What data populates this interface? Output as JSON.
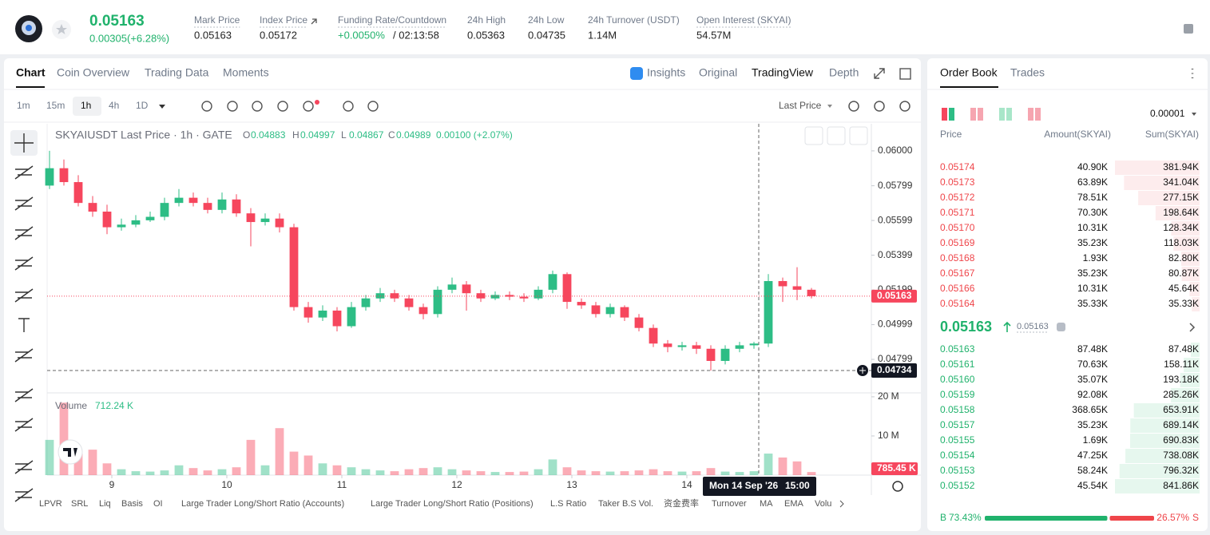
{
  "header": {
    "price": "0.05163",
    "change": "0.00305(+6.28%)",
    "stats": [
      {
        "label": "Mark Price",
        "value": "0.05163"
      },
      {
        "label": "Index Price",
        "value": "0.05172"
      },
      {
        "label": "Funding Rate/Countdown",
        "value": "+0.0050%",
        "extra": "/ 02:13:58"
      },
      {
        "label": "24h High",
        "value": "0.05363"
      },
      {
        "label": "24h Low",
        "value": "0.04735"
      },
      {
        "label": "24h Turnover (USDT)",
        "value": "1.14M"
      },
      {
        "label": "Open Interest (SKYAI)",
        "value": "54.57M"
      }
    ]
  },
  "chart_tabs": [
    "Chart",
    "Coin Overview",
    "Trading Data",
    "Moments"
  ],
  "chart_views": [
    "Insights",
    "Original",
    "TradingView",
    "Depth"
  ],
  "intervals": [
    "1m",
    "15m",
    "1h",
    "4h",
    "1D"
  ],
  "price_source": "Last Price",
  "chart_data": {
    "type": "candlestick",
    "symbol_title": "SKYAIUSDT Last Price · 1h · GATE",
    "ohlc_legend": [
      {
        "label": "O",
        "value": "0.04883"
      },
      {
        "label": "H",
        "value": "0.04997"
      },
      {
        "label": "L",
        "value": "0.04867"
      },
      {
        "label": "C",
        "value": "0.04989"
      }
    ],
    "ohlc_change": "0.00100 (+2.07%)",
    "up_color": "#2dbd85",
    "down_color": "#f6465d",
    "x": [
      0,
      3,
      6,
      9,
      12,
      15,
      18,
      21,
      24,
      27,
      30,
      33,
      36,
      39,
      42,
      45,
      48,
      51,
      54,
      57,
      60,
      63,
      66,
      69,
      72,
      75,
      78,
      81,
      84,
      87,
      90,
      93,
      96,
      99,
      102,
      105,
      108,
      111,
      114,
      117,
      120,
      123,
      126,
      129,
      132,
      135,
      138,
      141,
      144,
      147,
      150,
      153,
      156,
      159
    ],
    "open": [
      0.058,
      0.059,
      0.0582,
      0.057,
      0.0565,
      0.0556,
      0.05575,
      0.056,
      0.0562,
      0.057,
      0.0573,
      0.057,
      0.0566,
      0.0572,
      0.0564,
      0.0559,
      0.0561,
      0.0556,
      0.051,
      0.0504,
      0.0508,
      0.0499,
      0.051,
      0.0515,
      0.0518,
      0.0515,
      0.051,
      0.0506,
      0.052,
      0.0523,
      0.0518,
      0.0515,
      0.0517,
      0.0516,
      0.0515,
      0.052,
      0.0529,
      0.0513,
      0.0511,
      0.0506,
      0.051,
      0.0504,
      0.0498,
      0.0489,
      0.0487,
      0.0488,
      0.0486,
      0.0479,
      0.0486,
      0.0488,
      0.0489,
      0.0525,
      0.0522,
      0.052
    ],
    "high": [
      0.06,
      0.0595,
      0.0586,
      0.0574,
      0.0569,
      0.0561,
      0.0563,
      0.0565,
      0.0573,
      0.0578,
      0.0576,
      0.0573,
      0.0576,
      0.0575,
      0.0567,
      0.0564,
      0.0564,
      0.0558,
      0.0513,
      0.0511,
      0.051,
      0.0513,
      0.0517,
      0.0521,
      0.052,
      0.0517,
      0.0512,
      0.0522,
      0.0527,
      0.0525,
      0.052,
      0.0519,
      0.0519,
      0.0518,
      0.0522,
      0.0531,
      0.053,
      0.0515,
      0.0513,
      0.0512,
      0.0511,
      0.0506,
      0.05,
      0.0491,
      0.049,
      0.049,
      0.0488,
      0.0488,
      0.049,
      0.049,
      0.0529,
      0.0527,
      0.0533,
      0.0521
    ],
    "low": [
      0.0578,
      0.058,
      0.0568,
      0.0562,
      0.0552,
      0.0554,
      0.0556,
      0.0559,
      0.056,
      0.0568,
      0.0568,
      0.0564,
      0.0564,
      0.0562,
      0.0545,
      0.0557,
      0.0553,
      0.0508,
      0.0501,
      0.0502,
      0.0496,
      0.0498,
      0.0508,
      0.0513,
      0.0513,
      0.0508,
      0.0503,
      0.0504,
      0.0518,
      0.0508,
      0.0513,
      0.0514,
      0.0514,
      0.0513,
      0.0514,
      0.0518,
      0.0509,
      0.0509,
      0.0504,
      0.0504,
      0.0502,
      0.0496,
      0.0487,
      0.0484,
      0.0485,
      0.0483,
      0.04734,
      0.0477,
      0.0484,
      0.0486,
      0.0487,
      0.0513,
      0.0514,
      0.0515
    ],
    "close": [
      0.059,
      0.0582,
      0.057,
      0.0565,
      0.0556,
      0.05575,
      0.056,
      0.0562,
      0.057,
      0.0573,
      0.057,
      0.0566,
      0.0572,
      0.0564,
      0.0559,
      0.0561,
      0.0556,
      0.051,
      0.0504,
      0.0508,
      0.0499,
      0.051,
      0.0515,
      0.0518,
      0.0515,
      0.051,
      0.0506,
      0.052,
      0.0523,
      0.0518,
      0.0515,
      0.0517,
      0.0516,
      0.0515,
      0.052,
      0.0529,
      0.0513,
      0.0511,
      0.0506,
      0.051,
      0.0504,
      0.0498,
      0.0489,
      0.0487,
      0.0488,
      0.0486,
      0.0479,
      0.0486,
      0.0488,
      0.0489,
      0.0525,
      0.0522,
      0.052,
      0.05163
    ],
    "xlim": [
      0,
      171.5
    ],
    "xticks": [
      {
        "value": 13,
        "label": "9"
      },
      {
        "value": 37,
        "label": "10"
      },
      {
        "value": 61,
        "label": "11"
      },
      {
        "value": 85,
        "label": "12"
      },
      {
        "value": 109,
        "label": "13"
      },
      {
        "value": 133,
        "label": "14"
      }
    ],
    "ylim": [
      0.04606,
      0.06156
    ],
    "yticks": [
      {
        "value": 0.06,
        "label": "0.06000"
      },
      0.05799,
      0.05599,
      0.05399,
      0.05199,
      0.04999,
      0.04799
    ],
    "volume": {
      "label": "Volume",
      "value_label": "712.24 K",
      "values": [
        9000000,
        18500000,
        5500000,
        6500000,
        3000000,
        1500000,
        1000000,
        900000,
        1200000,
        2500000,
        1800000,
        1200000,
        1500000,
        2000000,
        9000000,
        2500000,
        12000000,
        6000000,
        5000000,
        3000000,
        2500000,
        2000000,
        1500000,
        1200000,
        1000000,
        1500000,
        1800000,
        2000000,
        1500000,
        1200000,
        1000000,
        800000,
        800000,
        900000,
        1500000,
        4000000,
        2000000,
        1200000,
        1000000,
        900000,
        1000000,
        1200000,
        1500000,
        1000000,
        900000,
        1000000,
        1800000,
        900000,
        800000,
        1000000,
        5500000,
        4500000,
        3500000,
        785450
      ],
      "ylim": [
        0,
        20800000
      ],
      "yticks": [
        {
          "value": 20000000,
          "label": "20 M"
        },
        {
          "value": 10000000,
          "label": "10 M"
        }
      ]
    },
    "last_price_tag": "0.05163",
    "last_volume_tag": "785.45 K",
    "crosshair_price_tag": "0.04734",
    "crosshair_date": "Mon 14 Sep '26",
    "crosshair_time": "15:00"
  },
  "indicators": [
    "LPVR",
    "SRL",
    "Liq",
    "Basis",
    "OI",
    "Large Trader Long/Short Ratio (Accounts)",
    "Large Trader Long/Short Ratio (Positions)",
    "L.S Ratio",
    "Taker B.S Vol.",
    "资金费率",
    "Turnover",
    "MA",
    "EMA",
    "Volu"
  ],
  "order_book": {
    "tabs": [
      "Order Book",
      "Trades"
    ],
    "precision": "0.00001",
    "columns": [
      "Price",
      "Amount(SKYAI)",
      "Sum(SKYAI)"
    ],
    "asks": [
      {
        "price": "0.05174",
        "amount": "40.90K",
        "sum": {
          "value": 381940,
          "label": "381.94K"
        }
      },
      {
        "price": "0.05173",
        "amount": "63.89K",
        "sum": {
          "value": 341040,
          "label": "341.04K"
        }
      },
      {
        "price": "0.05172",
        "amount": "78.51K",
        "sum": {
          "value": 277150,
          "label": "277.15K"
        }
      },
      {
        "price": "0.05171",
        "amount": "70.30K",
        "sum": {
          "value": 198640,
          "label": "198.64K"
        }
      },
      {
        "price": "0.05170",
        "amount": "10.31K",
        "sum": {
          "value": 128340,
          "label": "128.34K"
        }
      },
      {
        "price": "0.05169",
        "amount": "35.23K",
        "sum": {
          "value": 118030,
          "label": "118.03K"
        }
      },
      {
        "price": "0.05168",
        "amount": "1.93K",
        "sum": {
          "value": 82800,
          "label": "82.80K"
        }
      },
      {
        "price": "0.05167",
        "amount": "35.23K",
        "sum": {
          "value": 80870,
          "label": "80.87K"
        }
      },
      {
        "price": "0.05166",
        "amount": "10.31K",
        "sum": {
          "value": 45640,
          "label": "45.64K"
        }
      },
      {
        "price": "0.05164",
        "amount": "35.33K",
        "sum": {
          "value": 35330,
          "label": "35.33K"
        }
      }
    ],
    "mid_price": "0.05163",
    "mark_price": "0.05163",
    "bids": [
      {
        "price": "0.05163",
        "amount": "87.48K",
        "sum": {
          "value": 87480,
          "label": "87.48K"
        }
      },
      {
        "price": "0.05161",
        "amount": "70.63K",
        "sum": {
          "value": 158110,
          "label": "158.11K"
        }
      },
      {
        "price": "0.05160",
        "amount": "35.07K",
        "sum": {
          "value": 193180,
          "label": "193.18K"
        }
      },
      {
        "price": "0.05159",
        "amount": "92.08K",
        "sum": {
          "value": 285260,
          "label": "285.26K"
        }
      },
      {
        "price": "0.05158",
        "amount": "368.65K",
        "sum": {
          "value": 653910,
          "label": "653.91K"
        }
      },
      {
        "price": "0.05157",
        "amount": "35.23K",
        "sum": {
          "value": 689140,
          "label": "689.14K"
        }
      },
      {
        "price": "0.05155",
        "amount": "1.69K",
        "sum": {
          "value": 690830,
          "label": "690.83K"
        }
      },
      {
        "price": "0.05154",
        "amount": "47.25K",
        "sum": {
          "value": 738080,
          "label": "738.08K"
        }
      },
      {
        "price": "0.05153",
        "amount": "58.24K",
        "sum": {
          "value": 796320,
          "label": "796.32K"
        }
      },
      {
        "price": "0.05152",
        "amount": "45.54K",
        "sum": {
          "value": 841860,
          "label": "841.86K"
        }
      }
    ],
    "buy_letter": "B",
    "sell_letter": "S",
    "buy_ratio": {
      "value": 73.43,
      "label": "73.43%"
    },
    "sell_ratio": {
      "value": 26.57,
      "label": "26.57%"
    }
  }
}
